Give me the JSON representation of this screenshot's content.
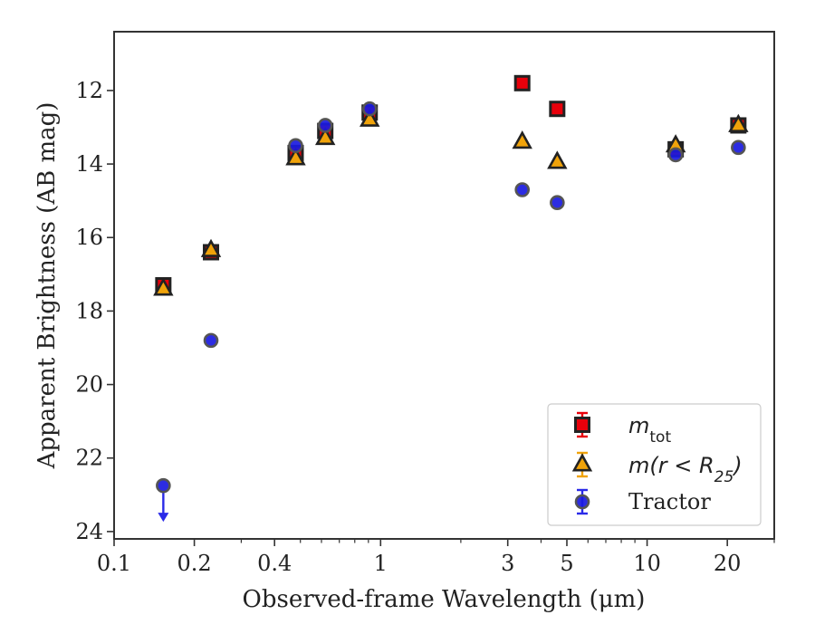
{
  "chart_data": {
    "type": "scatter",
    "xlabel": "Observed-frame Wavelength (μm)",
    "ylabel": "Apparent Brightness (AB mag)",
    "x_scale": "log",
    "xlim": [
      0.1,
      30
    ],
    "ylim": [
      24.2,
      10.4
    ],
    "y_inverted": true,
    "x_ticks": [
      0.1,
      0.2,
      0.4,
      1,
      3,
      5,
      10,
      20
    ],
    "x_tick_labels": [
      "0.1",
      "0.2",
      "0.4",
      "1",
      "3",
      "5",
      "10",
      "20"
    ],
    "y_ticks": [
      12,
      14,
      16,
      18,
      20,
      22,
      24
    ],
    "y_tick_labels": [
      "12",
      "14",
      "16",
      "18",
      "20",
      "22",
      "24"
    ],
    "legend_position": "lower-right",
    "series": [
      {
        "name": "m_tot",
        "label_main": "m",
        "label_sub": "tot",
        "marker": "square",
        "color": "#e8000b",
        "edge_color": "#222222",
        "points": [
          {
            "x": 0.153,
            "y": 17.3
          },
          {
            "x": 0.231,
            "y": 16.4
          },
          {
            "x": 0.48,
            "y": 13.7
          },
          {
            "x": 0.62,
            "y": 13.1
          },
          {
            "x": 0.91,
            "y": 12.6
          },
          {
            "x": 3.4,
            "y": 11.8
          },
          {
            "x": 4.6,
            "y": 12.5
          },
          {
            "x": 12.8,
            "y": 13.6
          },
          {
            "x": 22.0,
            "y": 12.95
          }
        ]
      },
      {
        "name": "m(r < R25)",
        "label_main": "m(r < R",
        "label_sub": "25",
        "label_end": ")",
        "marker": "triangle",
        "color": "#f0a30a",
        "edge_color": "#222222",
        "points": [
          {
            "x": 0.153,
            "y": 17.4
          },
          {
            "x": 0.231,
            "y": 16.35
          },
          {
            "x": 0.48,
            "y": 13.85
          },
          {
            "x": 0.62,
            "y": 13.3
          },
          {
            "x": 0.91,
            "y": 12.8
          },
          {
            "x": 3.4,
            "y": 13.4
          },
          {
            "x": 4.6,
            "y": 13.95
          },
          {
            "x": 12.8,
            "y": 13.5
          },
          {
            "x": 22.0,
            "y": 12.95
          }
        ]
      },
      {
        "name": "Tractor",
        "label_main": "Tractor",
        "marker": "circle",
        "color": "#1a1ae0",
        "edge_color": "#555555",
        "points": [
          {
            "x": 0.153,
            "y": 22.75,
            "upper_limit": true
          },
          {
            "x": 0.231,
            "y": 18.8
          },
          {
            "x": 0.48,
            "y": 13.5
          },
          {
            "x": 0.62,
            "y": 12.95
          },
          {
            "x": 0.91,
            "y": 12.5
          },
          {
            "x": 3.4,
            "y": 14.7
          },
          {
            "x": 4.6,
            "y": 15.05
          },
          {
            "x": 12.8,
            "y": 13.75
          },
          {
            "x": 22.0,
            "y": 13.55
          }
        ]
      }
    ]
  }
}
